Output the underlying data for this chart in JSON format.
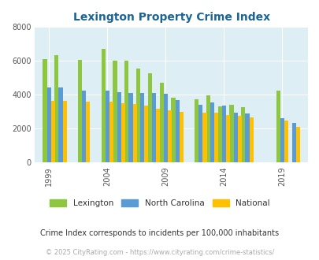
{
  "title": "Lexington Property Crime Index",
  "title_color": "#1a6496",
  "background_color": "#deeef5",
  "fig_background": "#ffffff",
  "years": [
    1999,
    2000,
    2001,
    2002,
    2003,
    2004,
    2005,
    2006,
    2007,
    2008,
    2009,
    2010,
    2011,
    2012,
    2013,
    2014,
    2015,
    2016,
    2019,
    2020
  ],
  "lexington": [
    6100,
    6350,
    0,
    6080,
    0,
    6720,
    6000,
    6000,
    5550,
    5280,
    4700,
    3850,
    0,
    3750,
    3950,
    3300,
    3400,
    3250,
    4250,
    0
  ],
  "north_carolina": [
    4430,
    4430,
    0,
    4250,
    0,
    4250,
    4150,
    4100,
    4100,
    4100,
    4050,
    3700,
    0,
    3400,
    3550,
    3350,
    2950,
    2900,
    2600,
    2350
  ],
  "national": [
    3650,
    3650,
    0,
    3600,
    0,
    3600,
    3500,
    3450,
    3350,
    3200,
    3100,
    3000,
    0,
    2950,
    2950,
    2800,
    2750,
    2650,
    2500,
    2100
  ],
  "lexington_color": "#8dc63f",
  "nc_color": "#5b9bd5",
  "national_color": "#ffc000",
  "ylim": [
    0,
    8000
  ],
  "yticks": [
    0,
    2000,
    4000,
    6000,
    8000
  ],
  "tick_years": [
    1999,
    2004,
    2009,
    2014,
    2019
  ],
  "footnote": "Crime Index corresponds to incidents per 100,000 inhabitants",
  "copyright": "© 2025 CityRating.com - https://www.cityrating.com/crime-statistics/",
  "legend_labels": [
    "Lexington",
    "North Carolina",
    "National"
  ]
}
